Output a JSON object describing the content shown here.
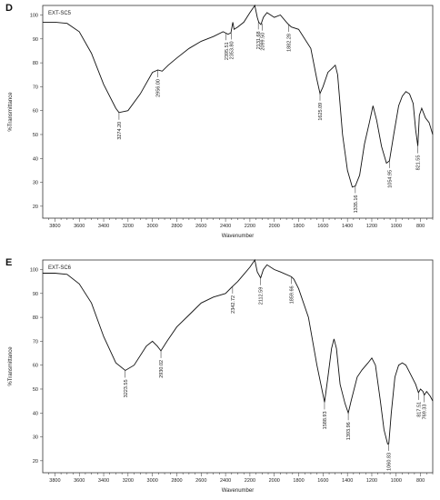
{
  "chart_data": [
    {
      "panel_label": "D",
      "type": "line",
      "sample_label": "EXT-SC5",
      "xlabel": "Wavenumber",
      "ylabel": "%Transmittance",
      "xlim": [
        3900,
        700
      ],
      "ylim": [
        15,
        104
      ],
      "x_ticks": [
        3800,
        3600,
        3400,
        3200,
        3000,
        2800,
        2600,
        2400,
        2200,
        2000,
        1800,
        1600,
        1400,
        1200,
        1000,
        800
      ],
      "y_ticks": [
        20,
        30,
        40,
        50,
        60,
        70,
        80,
        90,
        100
      ],
      "series": [
        {
          "points": [
            [
              3900,
              97
            ],
            [
              3800,
              97
            ],
            [
              3700,
              96.5
            ],
            [
              3600,
              93
            ],
            [
              3500,
              84
            ],
            [
              3400,
              71
            ],
            [
              3300,
              61
            ],
            [
              3274,
              59.2
            ],
            [
              3200,
              60
            ],
            [
              3100,
              67
            ],
            [
              3000,
              76
            ],
            [
              2956,
              77
            ],
            [
              2920,
              76.5
            ],
            [
              2870,
              79
            ],
            [
              2800,
              82
            ],
            [
              2700,
              86
            ],
            [
              2600,
              89
            ],
            [
              2500,
              91
            ],
            [
              2420,
              93
            ],
            [
              2380,
              92
            ],
            [
              2356,
              92.5
            ],
            [
              2340,
              97
            ],
            [
              2330,
              94
            ],
            [
              2300,
              95
            ],
            [
              2250,
              97
            ],
            [
              2200,
              101
            ],
            [
              2160,
              104
            ],
            [
              2140,
              99
            ],
            [
              2128,
              97
            ],
            [
              2110,
              96
            ],
            [
              2090,
              99
            ],
            [
              2060,
              101
            ],
            [
              2000,
              99
            ],
            [
              1950,
              100
            ],
            [
              1900,
              97
            ],
            [
              1882,
              96
            ],
            [
              1860,
              95
            ],
            [
              1800,
              94
            ],
            [
              1700,
              86
            ],
            [
              1650,
              73
            ],
            [
              1625,
              67.2
            ],
            [
              1600,
              70
            ],
            [
              1560,
              76
            ],
            [
              1520,
              78
            ],
            [
              1500,
              79
            ],
            [
              1480,
              75
            ],
            [
              1440,
              50
            ],
            [
              1400,
              35
            ],
            [
              1360,
              28
            ],
            [
              1335,
              28.5
            ],
            [
              1300,
              33
            ],
            [
              1260,
              46
            ],
            [
              1220,
              55
            ],
            [
              1190,
              62
            ],
            [
              1160,
              56
            ],
            [
              1120,
              45
            ],
            [
              1080,
              38
            ],
            [
              1055,
              39
            ],
            [
              1020,
              50
            ],
            [
              980,
              62
            ],
            [
              950,
              66
            ],
            [
              920,
              68
            ],
            [
              890,
              67
            ],
            [
              860,
              63
            ],
            [
              840,
              52
            ],
            [
              822,
              45.2
            ],
            [
              810,
              58
            ],
            [
              790,
              61
            ],
            [
              760,
              57
            ],
            [
              730,
              55
            ],
            [
              700,
              50
            ]
          ],
          "color": "#111111"
        }
      ],
      "peak_labels": [
        {
          "x": 3274,
          "y": 59.2,
          "text": "3274.20"
        },
        {
          "x": 2956,
          "y": 77,
          "text": "2956.00"
        },
        {
          "x": 2395,
          "y": 92.5,
          "text": "2395.51"
        },
        {
          "x": 2354,
          "y": 92.8,
          "text": "2353.80"
        },
        {
          "x": 2131,
          "y": 97,
          "text": "2131.68"
        },
        {
          "x": 2099,
          "y": 96.5,
          "text": "2099.50"
        },
        {
          "x": 1882,
          "y": 96,
          "text": "1882.28"
        },
        {
          "x": 1625,
          "y": 67.2,
          "text": "1625.09"
        },
        {
          "x": 1335,
          "y": 28.5,
          "text": "1335.16"
        },
        {
          "x": 1055,
          "y": 39,
          "text": "1054.95"
        },
        {
          "x": 822,
          "y": 45.2,
          "text": "821.55"
        }
      ]
    },
    {
      "panel_label": "E",
      "type": "line",
      "sample_label": "EXT-SC6",
      "xlabel": "Wavenumber",
      "ylabel": "%Transmittance",
      "xlim": [
        3900,
        700
      ],
      "ylim": [
        15,
        104
      ],
      "x_ticks": [
        3800,
        3600,
        3400,
        3200,
        3000,
        2800,
        2600,
        2400,
        2200,
        2000,
        1800,
        1600,
        1400,
        1200,
        1000,
        800
      ],
      "y_ticks": [
        20,
        30,
        40,
        50,
        60,
        70,
        80,
        90,
        100
      ],
      "series": [
        {
          "points": [
            [
              3900,
              98.5
            ],
            [
              3800,
              98.5
            ],
            [
              3700,
              98
            ],
            [
              3600,
              94
            ],
            [
              3500,
              86
            ],
            [
              3400,
              72
            ],
            [
              3300,
              61
            ],
            [
              3223,
              57.8
            ],
            [
              3150,
              60
            ],
            [
              3050,
              68
            ],
            [
              3000,
              70
            ],
            [
              2960,
              68
            ],
            [
              2930,
              66
            ],
            [
              2880,
              70
            ],
            [
              2800,
              76
            ],
            [
              2700,
              81
            ],
            [
              2600,
              86
            ],
            [
              2500,
              88.5
            ],
            [
              2400,
              90
            ],
            [
              2342,
              93
            ],
            [
              2300,
              95
            ],
            [
              2250,
              98
            ],
            [
              2200,
              101
            ],
            [
              2160,
              104
            ],
            [
              2140,
              99
            ],
            [
              2112,
              96.5
            ],
            [
              2090,
              100
            ],
            [
              2060,
              102
            ],
            [
              2000,
              100
            ],
            [
              1950,
              99
            ],
            [
              1860,
              97
            ],
            [
              1840,
              96
            ],
            [
              1800,
              92
            ],
            [
              1720,
              80
            ],
            [
              1650,
              60
            ],
            [
              1588,
              44.5
            ],
            [
              1560,
              55
            ],
            [
              1530,
              67
            ],
            [
              1510,
              71
            ],
            [
              1490,
              67
            ],
            [
              1460,
              52
            ],
            [
              1420,
              44
            ],
            [
              1393,
              40
            ],
            [
              1370,
              45
            ],
            [
              1320,
              55
            ],
            [
              1280,
              58
            ],
            [
              1230,
              61
            ],
            [
              1200,
              63
            ],
            [
              1170,
              60
            ],
            [
              1130,
              45
            ],
            [
              1100,
              33
            ],
            [
              1070,
              27
            ],
            [
              1060,
              27.2
            ],
            [
              1040,
              40
            ],
            [
              1010,
              55
            ],
            [
              980,
              60
            ],
            [
              950,
              61
            ],
            [
              920,
              60
            ],
            [
              900,
              58
            ],
            [
              870,
              55
            ],
            [
              840,
              52
            ],
            [
              817,
              48.5
            ],
            [
              800,
              50
            ],
            [
              780,
              49
            ],
            [
              769,
              47.5
            ],
            [
              750,
              49
            ],
            [
              720,
              47
            ],
            [
              700,
              45
            ]
          ],
          "color": "#111111"
        }
      ],
      "peak_labels": [
        {
          "x": 3223,
          "y": 57.8,
          "text": "3223.55"
        },
        {
          "x": 2930,
          "y": 66,
          "text": "2930.02"
        },
        {
          "x": 2342,
          "y": 93,
          "text": "2342.72"
        },
        {
          "x": 2112,
          "y": 96.5,
          "text": "2112.59"
        },
        {
          "x": 1859,
          "y": 97,
          "text": "1859.66"
        },
        {
          "x": 1588,
          "y": 44.5,
          "text": "1588.93"
        },
        {
          "x": 1393,
          "y": 40,
          "text": "1393.96"
        },
        {
          "x": 1060,
          "y": 27.2,
          "text": "1060.83"
        },
        {
          "x": 817,
          "y": 48.5,
          "text": "817.51"
        },
        {
          "x": 769,
          "y": 47.5,
          "text": "769.33"
        }
      ]
    }
  ]
}
